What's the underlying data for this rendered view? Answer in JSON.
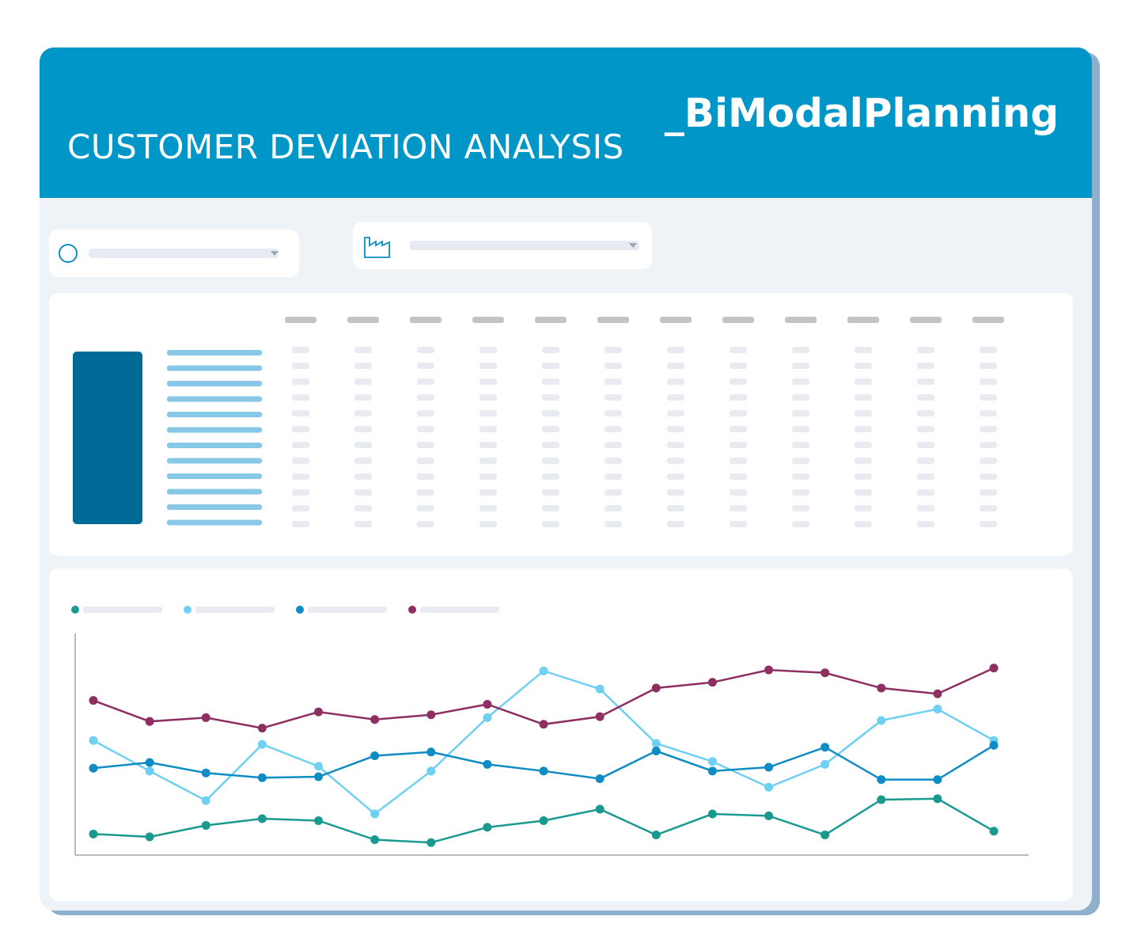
{
  "header": {
    "title": "CUSTOMER DEVIATION ANALYSIS",
    "logo": "_BiModalPlanning"
  },
  "chart_data": {
    "type": "line",
    "ylim": [
      0,
      220
    ],
    "series": [
      {
        "color": "#1a9a8f",
        "values": [
          18,
          15,
          27,
          34,
          32,
          12,
          9,
          25,
          32,
          44,
          17,
          39,
          37,
          17,
          54,
          55,
          21
        ]
      },
      {
        "color": "#6fd0f2",
        "values": [
          116,
          84,
          53,
          112,
          89,
          39,
          84,
          140,
          189,
          170,
          113,
          94,
          67,
          91,
          137,
          149,
          116
        ]
      },
      {
        "color": "#0f8cc4",
        "values": [
          87,
          93,
          82,
          77,
          78,
          100,
          104,
          91,
          84,
          76,
          105,
          84,
          88,
          109,
          75,
          75,
          111
        ]
      },
      {
        "color": "#8e2f62",
        "values": [
          158,
          136,
          140,
          129,
          146,
          138,
          143,
          154,
          133,
          141,
          171,
          177,
          190,
          187,
          171,
          165,
          192
        ]
      }
    ]
  }
}
